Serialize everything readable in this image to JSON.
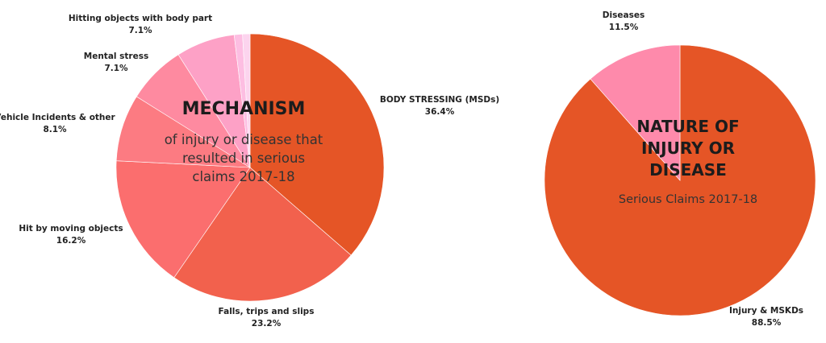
{
  "chart_data": [
    {
      "type": "pie",
      "title_lines": [
        "MECHANISM"
      ],
      "subtitle_lines": [
        "of injury or disease that",
        "resulted in serious",
        "claims 2017-18"
      ],
      "slices": [
        {
          "label": "BODY STRESSING (MSDs)",
          "value": 36.4,
          "value_label": "36.4%",
          "color": "#E55526"
        },
        {
          "label": "Falls, trips and slips",
          "value": 23.2,
          "value_label": "23.2%",
          "color": "#F2614D"
        },
        {
          "label": "Hit by moving objects",
          "value": 16.2,
          "value_label": "16.2%",
          "color": "#FB6E6E"
        },
        {
          "label": "Vehicle Incidents & other",
          "value": 8.1,
          "value_label": "8.1%",
          "color": "#FC7B82"
        },
        {
          "label": "Mental stress",
          "value": 7.1,
          "value_label": "7.1%",
          "color": "#FE8AA0"
        },
        {
          "label": "Hitting objects with body part",
          "value": 7.1,
          "value_label": "7.1%",
          "color": "#FDA1C6"
        },
        {
          "label": "",
          "value": 1.0,
          "value_label": "",
          "color": "#FDBEE2"
        },
        {
          "label": "",
          "value": 0.9,
          "value_label": "",
          "color": "#FCD4EE"
        }
      ]
    },
    {
      "type": "pie",
      "title_lines": [
        "NATURE OF",
        "INJURY OR",
        "DISEASE"
      ],
      "subtitle_lines": [
        "Serious Claims 2017-18"
      ],
      "slices": [
        {
          "label": "Injury & MSKDs",
          "value": 88.5,
          "value_label": "88.5%",
          "color": "#E55526"
        },
        {
          "label": "Diseases",
          "value": 11.5,
          "value_label": "11.5%",
          "color": "#FE8AAB"
        }
      ]
    }
  ]
}
